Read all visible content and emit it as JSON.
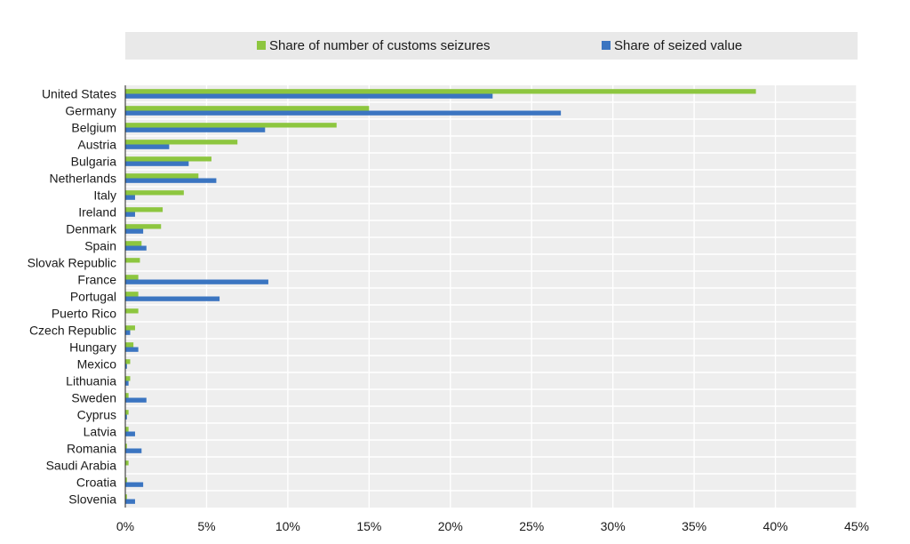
{
  "chart_data": {
    "type": "bar",
    "orientation": "horizontal",
    "categories": [
      "United States",
      "Germany",
      "Belgium",
      "Austria",
      "Bulgaria",
      "Netherlands",
      "Italy",
      "Ireland",
      "Denmark",
      "Spain",
      "Slovak Republic",
      "France",
      "Portugal",
      "Puerto Rico",
      "Czech Republic",
      "Hungary",
      "Mexico",
      "Lithuania",
      "Sweden",
      "Cyprus",
      "Latvia",
      "Romania",
      "Saudi Arabia",
      "Croatia",
      "Slovenia"
    ],
    "series": [
      {
        "name": "Share of number of customs seizures",
        "color": "#8dc63f",
        "values": [
          38.8,
          15.0,
          13.0,
          6.9,
          5.3,
          4.5,
          3.6,
          2.3,
          2.2,
          1.0,
          0.9,
          0.8,
          0.8,
          0.8,
          0.6,
          0.5,
          0.3,
          0.3,
          0.2,
          0.2,
          0.2,
          0.1,
          0.2,
          0.1,
          0.1
        ]
      },
      {
        "name": "Share of seized value",
        "color": "#3b75c1",
        "values": [
          22.6,
          26.8,
          8.6,
          2.7,
          3.9,
          5.6,
          0.6,
          0.6,
          1.1,
          1.3,
          0.0,
          8.8,
          5.8,
          0.0,
          0.3,
          0.8,
          0.1,
          0.2,
          1.3,
          0.1,
          0.6,
          1.0,
          0.0,
          1.1,
          0.6
        ]
      }
    ],
    "x_ticks": [
      "0%",
      "5%",
      "10%",
      "15%",
      "20%",
      "25%",
      "30%",
      "35%",
      "40%",
      "45%"
    ],
    "xlim": [
      0,
      45
    ],
    "legend_position": "top",
    "grid": true,
    "title": "",
    "xlabel": "",
    "ylabel": ""
  }
}
